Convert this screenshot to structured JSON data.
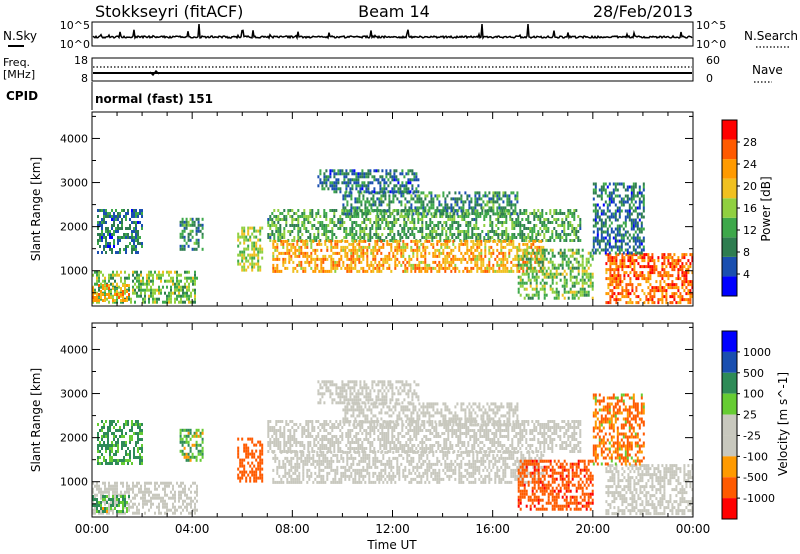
{
  "header": {
    "station": "Stokkseyri (fitACF)",
    "beam": "Beam 14",
    "date": "28/Feb/2013"
  },
  "summary_panels": {
    "nsky_label": "N.Sky",
    "nsky_top": "10^5",
    "nsky_bottom": "10^0",
    "nsearch_label": "N.Search",
    "nsearch_top": "10^5",
    "nsearch_bottom": "10^0",
    "freq_label_line1": "Freq.",
    "freq_label_line2": "[MHz]",
    "freq_ticks": [
      "18",
      "8"
    ],
    "nave_label": "Nave",
    "nave_ticks": [
      "60",
      "0"
    ],
    "cpid_label": "CPID",
    "cpid_value": "normal (fast) 151"
  },
  "x_axis": {
    "label": "Time UT",
    "ticks": [
      "00:00",
      "04:00",
      "08:00",
      "12:00",
      "16:00",
      "20:00",
      "00:00"
    ]
  },
  "colors": {
    "power": [
      "#0000ff",
      "#1a4fb0",
      "#2e7d50",
      "#3da84a",
      "#90d040",
      "#f0c020",
      "#ff9a00",
      "#ff5a00",
      "#ff0000"
    ],
    "velocity": [
      "#ff0000",
      "#ff5a00",
      "#ff9a00",
      "#c8c8be",
      "#c8c8be",
      "#66cc33",
      "#2e8b57",
      "#1a4fb0",
      "#0000ff"
    ],
    "ground_scatter": "#c8c8be"
  },
  "chart_data": [
    {
      "type": "heatmap",
      "title": "Power",
      "ylabel": "Slant Range [km]",
      "xlabel": "",
      "ylim": [
        200,
        4600
      ],
      "yticks": [
        "1000",
        "2000",
        "3000",
        "4000"
      ],
      "colorbar": {
        "label": "Power [dB]",
        "ticks": [
          "4",
          "8",
          "12",
          "16",
          "20",
          "24",
          "28"
        ],
        "range": [
          0,
          32
        ]
      },
      "x_hours": [
        0,
        24
      ],
      "regions": [
        {
          "t0": 0.0,
          "t1": 4.2,
          "r0": 300,
          "r1": 1000,
          "value": 14
        },
        {
          "t0": 0.0,
          "t1": 1.5,
          "r0": 300,
          "r1": 700,
          "value": 22
        },
        {
          "t0": 0.2,
          "t1": 2.0,
          "r0": 1400,
          "r1": 2400,
          "value": 8
        },
        {
          "t0": 3.5,
          "t1": 4.4,
          "r0": 1500,
          "r1": 2200,
          "value": 10
        },
        {
          "t0": 5.8,
          "t1": 6.8,
          "r0": 1000,
          "r1": 2000,
          "value": 16
        },
        {
          "t0": 7.0,
          "t1": 19.5,
          "r0": 1700,
          "r1": 2400,
          "value": 12
        },
        {
          "t0": 7.2,
          "t1": 18.0,
          "r0": 1000,
          "r1": 1700,
          "value": 22
        },
        {
          "t0": 10.0,
          "t1": 17.0,
          "r0": 2300,
          "r1": 2800,
          "value": 10
        },
        {
          "t0": 9.0,
          "t1": 13.0,
          "r0": 2800,
          "r1": 3300,
          "value": 8
        },
        {
          "t0": 17.0,
          "t1": 20.0,
          "r0": 400,
          "r1": 1500,
          "value": 14
        },
        {
          "t0": 20.5,
          "t1": 24.0,
          "r0": 300,
          "r1": 1400,
          "value": 26
        },
        {
          "t0": 20.0,
          "t1": 22.0,
          "r0": 1400,
          "r1": 3000,
          "value": 8
        }
      ]
    },
    {
      "type": "heatmap",
      "title": "Velocity",
      "ylabel": "Slant Range [km]",
      "xlabel": "Time UT",
      "ylim": [
        200,
        4600
      ],
      "yticks": [
        "1000",
        "2000",
        "3000",
        "4000"
      ],
      "colorbar": {
        "label": "Velocity [m s^-1]",
        "ticks": [
          "1000",
          "500",
          "100",
          "25",
          "-25",
          "-100",
          "-500",
          "-1000"
        ]
      },
      "x_hours": [
        0,
        24
      ],
      "regions": [
        {
          "t0": 0.0,
          "t1": 4.2,
          "r0": 300,
          "r1": 1000,
          "value": 0,
          "ground": true
        },
        {
          "t0": 0.0,
          "t1": 1.5,
          "r0": 300,
          "r1": 700,
          "value": 120
        },
        {
          "t0": 0.2,
          "t1": 2.0,
          "r0": 1400,
          "r1": 2400,
          "value": 150
        },
        {
          "t0": 3.5,
          "t1": 4.4,
          "r0": 1500,
          "r1": 2200,
          "value": 100
        },
        {
          "t0": 5.8,
          "t1": 6.8,
          "r0": 1000,
          "r1": 2000,
          "value": -300
        },
        {
          "t0": 7.0,
          "t1": 19.5,
          "r0": 1700,
          "r1": 2400,
          "value": 0,
          "ground": true
        },
        {
          "t0": 7.2,
          "t1": 18.0,
          "r0": 1000,
          "r1": 1700,
          "value": 0,
          "ground": true
        },
        {
          "t0": 10.0,
          "t1": 17.0,
          "r0": 2300,
          "r1": 2800,
          "value": 0,
          "ground": true
        },
        {
          "t0": 9.0,
          "t1": 13.0,
          "r0": 2800,
          "r1": 3300,
          "value": 0,
          "ground": true
        },
        {
          "t0": 17.0,
          "t1": 20.0,
          "r0": 400,
          "r1": 1500,
          "value": -400
        },
        {
          "t0": 20.5,
          "t1": 24.0,
          "r0": 300,
          "r1": 1400,
          "value": 0,
          "ground": true
        },
        {
          "t0": 20.0,
          "t1": 22.0,
          "r0": 1400,
          "r1": 3000,
          "value": -150
        }
      ]
    }
  ]
}
